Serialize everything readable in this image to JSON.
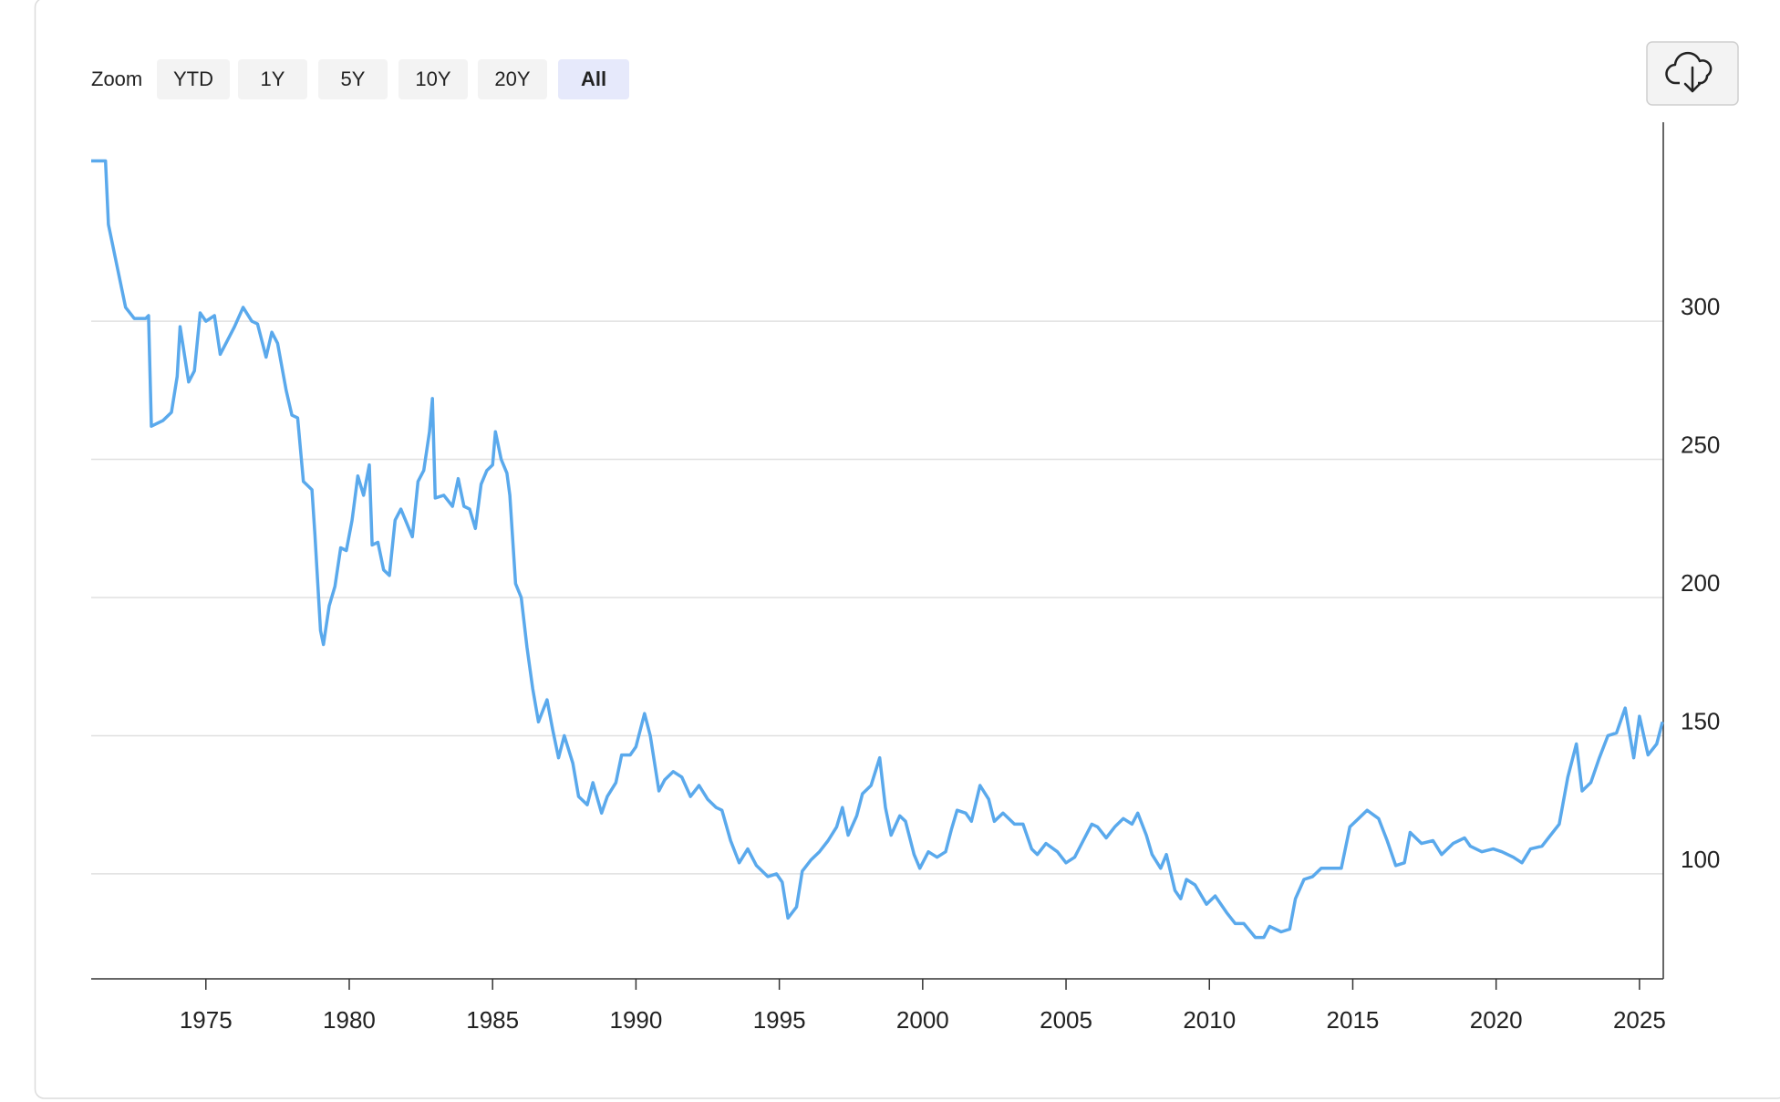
{
  "zoom": {
    "label": "Zoom",
    "buttons": [
      "YTD",
      "1Y",
      "5Y",
      "10Y",
      "20Y",
      "All"
    ],
    "active": 5
  },
  "chart_data": {
    "type": "line",
    "color": "#5aa9ec",
    "grid": true,
    "xlim": [
      1971.0,
      2025.83
    ],
    "xticks": [
      1975,
      1980,
      1985,
      1990,
      1995,
      2000,
      2005,
      2010,
      2015,
      2020,
      2025
    ],
    "ylim": [
      62,
      372
    ],
    "yticks": [
      100,
      150,
      200,
      250,
      300
    ],
    "x": [
      1971.0,
      1971.5,
      1971.6,
      1971.9,
      1972.2,
      1972.5,
      1972.9,
      1973.0,
      1973.1,
      1973.5,
      1973.8,
      1974.0,
      1974.1,
      1974.4,
      1974.6,
      1974.8,
      1975.0,
      1975.3,
      1975.5,
      1975.7,
      1976.0,
      1976.3,
      1976.6,
      1976.8,
      1977.1,
      1977.3,
      1977.5,
      1977.8,
      1978.0,
      1978.2,
      1978.4,
      1978.7,
      1978.8,
      1979.0,
      1979.1,
      1979.3,
      1979.5,
      1979.7,
      1979.9,
      1980.1,
      1980.3,
      1980.5,
      1980.7,
      1980.8,
      1981.0,
      1981.2,
      1981.4,
      1981.6,
      1981.8,
      1982.0,
      1982.2,
      1982.4,
      1982.6,
      1982.8,
      1982.9,
      1983.0,
      1983.3,
      1983.6,
      1983.8,
      1984.0,
      1984.2,
      1984.4,
      1984.6,
      1984.8,
      1985.0,
      1985.1,
      1985.3,
      1985.5,
      1985.6,
      1985.8,
      1986.0,
      1986.2,
      1986.4,
      1986.6,
      1986.9,
      1987.1,
      1987.3,
      1987.5,
      1987.8,
      1988.0,
      1988.3,
      1988.5,
      1988.8,
      1989.0,
      1989.3,
      1989.5,
      1989.8,
      1990.0,
      1990.3,
      1990.5,
      1990.8,
      1991.0,
      1991.3,
      1991.6,
      1991.9,
      1992.2,
      1992.5,
      1992.8,
      1993.0,
      1993.3,
      1993.6,
      1993.9,
      1994.2,
      1994.6,
      1994.9,
      1995.1,
      1995.3,
      1995.6,
      1995.8,
      1996.1,
      1996.4,
      1996.7,
      1997.0,
      1997.2,
      1997.4,
      1997.7,
      1997.9,
      1998.2,
      1998.5,
      1998.7,
      1998.9,
      1999.2,
      1999.4,
      1999.7,
      1999.9,
      2000.2,
      2000.5,
      2000.8,
      2001.0,
      2001.2,
      2001.5,
      2001.7,
      2002.0,
      2002.3,
      2002.5,
      2002.8,
      2003.2,
      2003.5,
      2003.8,
      2004.0,
      2004.3,
      2004.7,
      2005.0,
      2005.3,
      2005.6,
      2005.9,
      2006.1,
      2006.4,
      2006.7,
      2007.0,
      2007.3,
      2007.5,
      2007.8,
      2008.0,
      2008.3,
      2008.5,
      2008.8,
      2009.0,
      2009.2,
      2009.5,
      2009.9,
      2010.2,
      2010.6,
      2010.9,
      2011.2,
      2011.6,
      2011.9,
      2012.1,
      2012.5,
      2012.8,
      2013.0,
      2013.3,
      2013.6,
      2013.9,
      2014.2,
      2014.6,
      2014.9,
      2015.2,
      2015.5,
      2015.9,
      2016.2,
      2016.5,
      2016.8,
      2017.0,
      2017.4,
      2017.8,
      2018.1,
      2018.5,
      2018.9,
      2019.1,
      2019.5,
      2019.9,
      2020.2,
      2020.6,
      2020.9,
      2021.2,
      2021.6,
      2021.9,
      2022.2,
      2022.5,
      2022.8,
      2023.0,
      2023.3,
      2023.6,
      2023.9,
      2024.2,
      2024.5,
      2024.8,
      2025.0,
      2025.3,
      2025.6,
      2025.8
    ],
    "values": [
      358,
      358,
      335,
      320,
      305,
      301,
      301,
      302,
      262,
      264,
      267,
      280,
      298,
      278,
      282,
      303,
      300,
      302,
      288,
      292,
      298,
      305,
      300,
      299,
      287,
      296,
      292,
      275,
      266,
      265,
      242,
      239,
      223,
      188,
      183,
      197,
      204,
      218,
      217,
      228,
      244,
      237,
      248,
      219,
      220,
      210,
      208,
      228,
      232,
      227,
      222,
      242,
      246,
      260,
      272,
      236,
      237,
      233,
      243,
      233,
      232,
      225,
      241,
      246,
      248,
      260,
      250,
      245,
      237,
      205,
      200,
      182,
      167,
      155,
      163,
      152,
      142,
      150,
      140,
      128,
      125,
      133,
      122,
      128,
      133,
      143,
      143,
      146,
      158,
      150,
      130,
      134,
      137,
      135,
      128,
      132,
      127,
      124,
      123,
      112,
      104,
      109,
      103,
      99,
      100,
      97,
      84,
      88,
      101,
      105,
      108,
      112,
      117,
      124,
      114,
      121,
      129,
      132,
      142,
      124,
      114,
      121,
      119,
      107,
      102,
      108,
      106,
      108,
      116,
      123,
      122,
      119,
      132,
      127,
      119,
      122,
      118,
      118,
      109,
      107,
      111,
      108,
      104,
      106,
      112,
      118,
      117,
      113,
      117,
      120,
      118,
      122,
      114,
      107,
      102,
      107,
      94,
      91,
      98,
      96,
      89,
      92,
      86,
      82,
      82,
      77,
      77,
      81,
      79,
      80,
      91,
      98,
      99,
      102,
      102,
      102,
      117,
      120,
      123,
      120,
      112,
      103,
      104,
      115,
      111,
      112,
      107,
      111,
      113,
      110,
      108,
      109,
      108,
      106,
      104,
      109,
      110,
      114,
      118,
      135,
      147,
      130,
      133,
      142,
      150,
      151,
      160,
      142,
      157,
      143,
      147,
      155
    ]
  }
}
